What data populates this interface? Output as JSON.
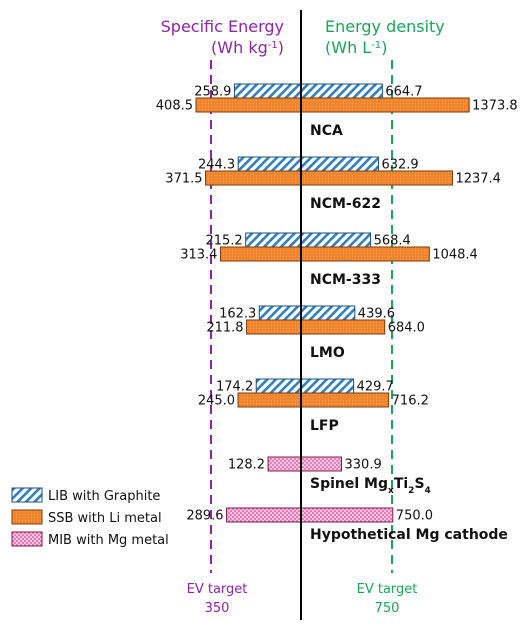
{
  "chart_data": {
    "type": "bar",
    "layout": "back-to-back horizontal bars",
    "left_axis": {
      "title": "Specific Energy",
      "unit_prefix": "(Wh kg",
      "unit_exp": "-1",
      "unit_suffix": ")",
      "color": "#8e24aa"
    },
    "right_axis": {
      "title": "Energy density",
      "unit_prefix": "(Wh L",
      "unit_exp": "-1",
      "unit_suffix": ")",
      "color": "#1aa65a"
    },
    "categories": [
      {
        "label": "NCA"
      },
      {
        "label": "NCM-622"
      },
      {
        "label": "NCM-333"
      },
      {
        "label": "LMO"
      },
      {
        "label": "LFP"
      },
      {
        "label_html": "Spinel Mg<tspan baseline-shift='sub' font-size='9'>x</tspan>Ti<tspan baseline-shift='sub' font-size='9'>2</tspan>S<tspan baseline-shift='sub' font-size='9'>4</tspan>"
      },
      {
        "label": "Hypothetical Mg cathode"
      }
    ],
    "series": [
      {
        "name": "LIB with Graphite",
        "pattern": "hatch",
        "color": "#2f7fc1",
        "specific_energy": [
          258.9,
          244.3,
          215.2,
          162.3,
          174.2,
          null,
          null
        ],
        "specific_energy_labels": [
          "258.9",
          "244.3",
          "215.2",
          "162.3",
          "174.2",
          "",
          ""
        ],
        "energy_density": [
          664.7,
          632.9,
          568.4,
          439.6,
          429.7,
          null,
          null
        ],
        "energy_density_labels": [
          "664.7",
          "632.9",
          "568.4",
          "439.6",
          "429.7",
          "",
          ""
        ]
      },
      {
        "name": "SSB with Li metal",
        "pattern": "solid",
        "color": "#f0852e",
        "specific_energy": [
          408.5,
          371.5,
          313.4,
          211.8,
          245.0,
          null,
          null
        ],
        "specific_energy_labels": [
          "408.5",
          "371.5",
          "313.4",
          "211.8",
          "245.0",
          "",
          ""
        ],
        "energy_density": [
          1373.8,
          1237.4,
          1048.4,
          684.0,
          716.2,
          null,
          null
        ],
        "energy_density_labels": [
          "1373.8",
          "1237.4",
          "1048.4",
          "684.0",
          "716.2",
          "",
          ""
        ]
      },
      {
        "name": "MIB with Mg metal",
        "pattern": "dots",
        "color": "#e0489a",
        "specific_energy": [
          null,
          null,
          null,
          null,
          null,
          128.2,
          289.6
        ],
        "specific_energy_labels": [
          "",
          "",
          "",
          "",
          "",
          "128.2",
          "289.6"
        ],
        "energy_density": [
          null,
          null,
          null,
          null,
          null,
          330.9,
          750.0
        ],
        "energy_density_labels": [
          "",
          "",
          "",
          "",
          "",
          "330.9",
          "750.0"
        ]
      }
    ],
    "targets": {
      "specific_energy": {
        "value": 350,
        "label": "EV target",
        "value_label": "350",
        "color": "#8e24aa"
      },
      "energy_density": {
        "value": 750,
        "label": "EV target",
        "value_label": "750",
        "color": "#1aa65a"
      }
    },
    "legend": {
      "position": "bottom-left"
    }
  }
}
